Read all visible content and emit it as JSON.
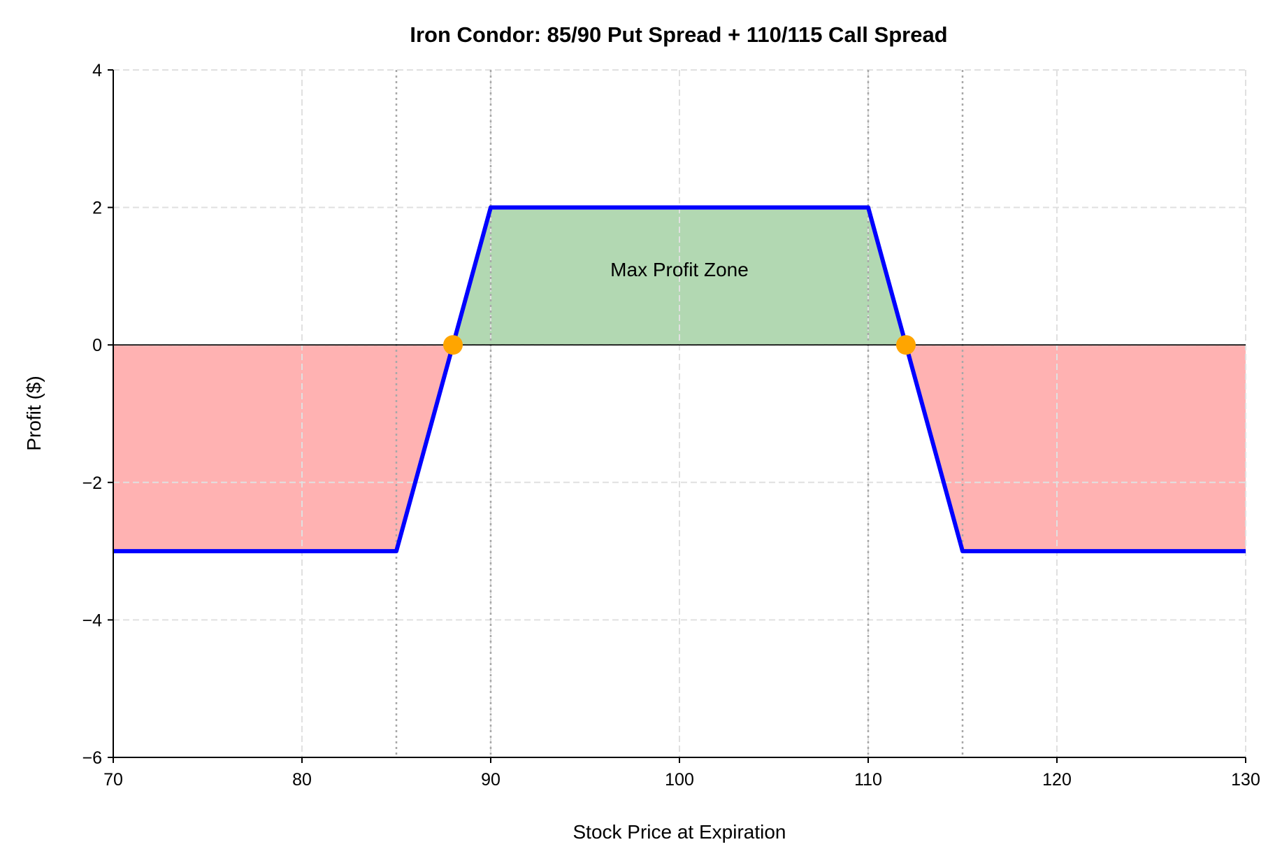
{
  "chart_data": {
    "type": "line",
    "title": "Iron Condor: 85/90 Put Spread + 110/115 Call Spread",
    "xlabel": "Stock Price at Expiration",
    "ylabel": "Profit ($)",
    "xlim": [
      70,
      130
    ],
    "ylim": [
      -6,
      4
    ],
    "xticks": [
      70,
      80,
      90,
      100,
      110,
      120,
      130
    ],
    "yticks": [
      4,
      2,
      0,
      -2,
      -4,
      -6
    ],
    "ytick_labels": [
      "4",
      "2",
      "0",
      "−2",
      "−4",
      "−6"
    ],
    "grid": true,
    "series": [
      {
        "x": [
          70,
          85,
          90,
          110,
          115,
          130
        ],
        "y": [
          -3,
          -3,
          2,
          2,
          -3,
          -3
        ],
        "color": "#0000ff"
      }
    ],
    "strike_lines": [
      85,
      90,
      110,
      115
    ],
    "breakevens": {
      "x": [
        88,
        112
      ],
      "y": [
        0,
        0
      ],
      "color": "#ffa500"
    },
    "fill_profit_color": "#b2d8b2",
    "fill_loss_color": "#ffb2b2",
    "annotation": {
      "text": "Max Profit Zone",
      "x": 100,
      "y": 1.1
    }
  }
}
